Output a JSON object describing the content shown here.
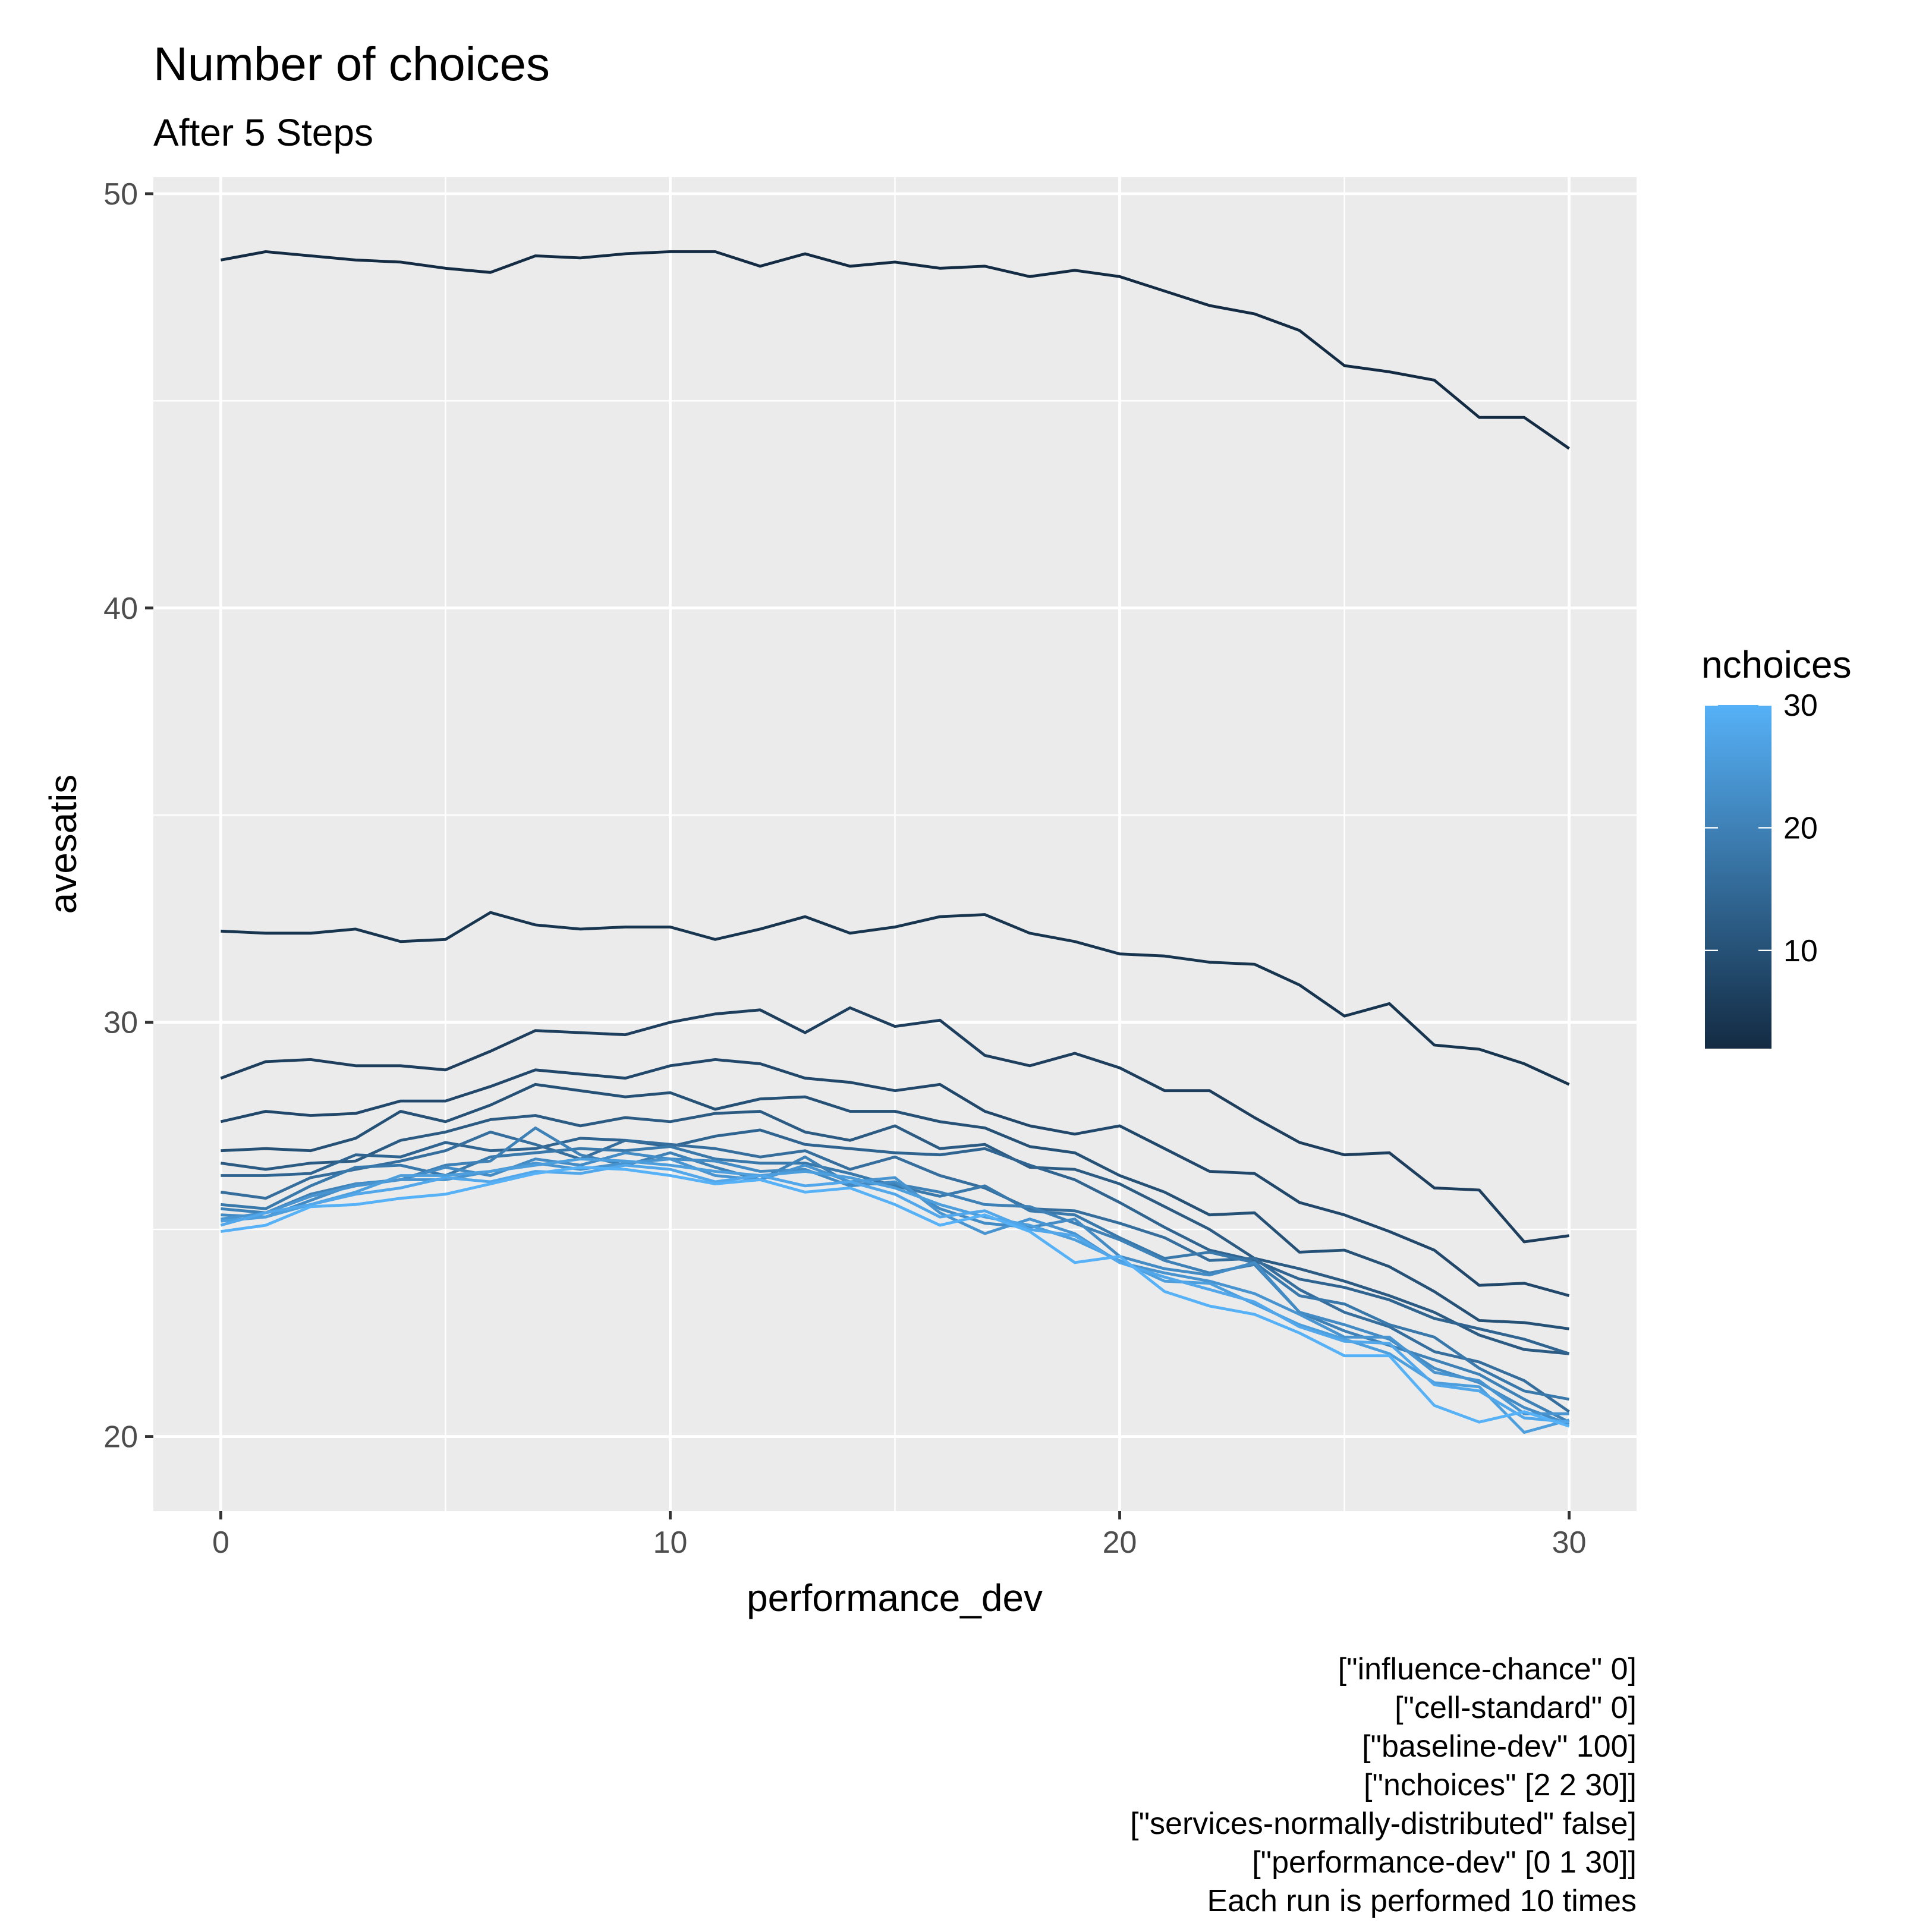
{
  "chart_data": {
    "type": "line",
    "title": "Number of choices",
    "subtitle": "After 5 Steps",
    "xlabel": "performance_dev",
    "ylabel": "avesatis",
    "xlim": [
      -1.5,
      31.5
    ],
    "ylim": [
      18.2,
      50.4
    ],
    "x_ticks": [
      0,
      10,
      20,
      30
    ],
    "y_ticks": [
      20,
      30,
      40,
      50
    ],
    "grid": true,
    "x": [
      0,
      1,
      2,
      3,
      4,
      5,
      6,
      7,
      8,
      9,
      10,
      11,
      12,
      13,
      14,
      15,
      16,
      17,
      18,
      19,
      20,
      21,
      22,
      23,
      24,
      25,
      26,
      27,
      28,
      29,
      30
    ],
    "color_legend": {
      "title": "nchoices",
      "type": "gradient",
      "min": 2,
      "max": 30,
      "low_color": "#132B43",
      "high_color": "#56B1F7",
      "ticks": [
        10,
        20,
        30
      ],
      "placement": "right"
    },
    "series": [
      {
        "nchoices": 2,
        "values": [
          48.4,
          48.6,
          48.5,
          48.4,
          48.35,
          48.2,
          48.1,
          48.5,
          48.45,
          48.55,
          48.6,
          48.6,
          48.25,
          48.55,
          48.25,
          48.35,
          48.2,
          48.25,
          48.0,
          48.15,
          48.0,
          47.65,
          47.3,
          47.1,
          46.7,
          45.85,
          45.7,
          45.5,
          44.6,
          44.6,
          43.85
        ]
      },
      {
        "nchoices": 4,
        "values": [
          32.2,
          32.15,
          32.15,
          32.25,
          31.95,
          32.0,
          32.65,
          32.35,
          32.25,
          32.3,
          32.3,
          32.0,
          32.25,
          32.55,
          32.15,
          32.3,
          32.55,
          32.6,
          32.15,
          31.95,
          31.65,
          31.6,
          31.45,
          31.4,
          30.9,
          30.15,
          30.45,
          29.45,
          29.35,
          29.0,
          28.5
        ]
      },
      {
        "nchoices": 6,
        "values": [
          28.65,
          29.05,
          29.1,
          28.95,
          28.95,
          28.85,
          29.3,
          29.8,
          29.75,
          29.7,
          30.0,
          30.2,
          30.3,
          29.75,
          30.35,
          29.9,
          30.05,
          29.2,
          28.95,
          29.25,
          28.9,
          28.35,
          28.35,
          27.7,
          27.1,
          26.8,
          26.85,
          26.0,
          25.95,
          24.7,
          24.85
        ]
      },
      {
        "nchoices": 8,
        "values": [
          27.6,
          27.85,
          27.75,
          27.8,
          28.1,
          28.1,
          28.45,
          28.85,
          28.75,
          28.65,
          28.95,
          29.1,
          29.0,
          28.65,
          28.55,
          28.35,
          28.5,
          27.85,
          27.5,
          27.3,
          27.5,
          26.95,
          26.4,
          26.35,
          25.65,
          25.35,
          24.95,
          24.5,
          23.65,
          23.7,
          23.4
        ]
      },
      {
        "nchoices": 10,
        "values": [
          26.9,
          26.95,
          26.9,
          27.2,
          27.85,
          27.6,
          28.0,
          28.5,
          28.35,
          28.2,
          28.3,
          27.9,
          28.15,
          28.2,
          27.85,
          27.85,
          27.6,
          27.45,
          27.0,
          26.85,
          26.3,
          25.9,
          25.35,
          25.4,
          24.45,
          24.5,
          24.1,
          23.5,
          22.8,
          22.75,
          22.6
        ]
      },
      {
        "nchoices": 12,
        "values": [
          26.6,
          26.45,
          26.6,
          26.65,
          27.15,
          27.35,
          27.65,
          27.75,
          27.5,
          27.7,
          27.6,
          27.8,
          27.85,
          27.35,
          27.15,
          27.5,
          26.95,
          27.05,
          26.5,
          26.45,
          26.1,
          25.55,
          25.0,
          24.3,
          24.05,
          23.75,
          23.4,
          23.0,
          22.45,
          22.1,
          22.0
        ]
      },
      {
        "nchoices": 14,
        "values": [
          26.3,
          26.3,
          26.35,
          26.8,
          26.75,
          27.1,
          26.9,
          26.95,
          27.2,
          27.15,
          27.0,
          27.25,
          27.4,
          27.05,
          26.95,
          26.85,
          26.8,
          26.95,
          26.55,
          26.2,
          25.65,
          25.05,
          24.5,
          24.25,
          23.8,
          23.6,
          23.3,
          22.85,
          22.6,
          22.35,
          22.0
        ]
      },
      {
        "nchoices": 16,
        "values": [
          25.9,
          25.75,
          26.25,
          26.45,
          26.65,
          26.9,
          27.35,
          27.05,
          26.7,
          27.15,
          27.05,
          26.95,
          26.75,
          26.9,
          26.45,
          26.75,
          26.3,
          26.0,
          25.5,
          25.45,
          25.15,
          24.8,
          24.25,
          24.3,
          23.55,
          23.0,
          22.65,
          22.05,
          21.8,
          21.35,
          20.6
        ]
      },
      {
        "nchoices": 18,
        "values": [
          25.6,
          25.5,
          26.05,
          26.5,
          26.55,
          26.3,
          26.75,
          26.85,
          26.95,
          26.9,
          27.0,
          26.7,
          26.6,
          26.6,
          26.35,
          26.05,
          25.8,
          26.05,
          25.45,
          25.35,
          24.8,
          24.3,
          24.45,
          24.2,
          23.4,
          23.2,
          22.7,
          22.4,
          21.65,
          21.1,
          20.9
        ]
      },
      {
        "nchoices": 20,
        "values": [
          25.5,
          25.4,
          25.85,
          26.1,
          26.2,
          26.55,
          26.65,
          27.45,
          26.8,
          26.55,
          26.85,
          26.5,
          26.2,
          26.75,
          26.1,
          26.1,
          25.9,
          25.6,
          25.55,
          25.15,
          24.75,
          24.25,
          23.95,
          24.15,
          23.0,
          22.55,
          22.2,
          21.85,
          21.5,
          20.9,
          20.35
        ]
      },
      {
        "nchoices": 22,
        "values": [
          25.35,
          25.3,
          25.7,
          26.1,
          26.2,
          26.5,
          26.3,
          26.7,
          26.55,
          26.85,
          26.7,
          26.65,
          26.4,
          26.45,
          26.05,
          26.15,
          25.5,
          25.15,
          25.05,
          25.25,
          24.35,
          24.05,
          23.9,
          24.2,
          23.0,
          22.7,
          22.35,
          21.65,
          21.3,
          20.7,
          20.3
        ]
      },
      {
        "nchoices": 24,
        "values": [
          25.25,
          25.4,
          25.8,
          26.05,
          26.2,
          26.2,
          26.4,
          26.6,
          26.45,
          26.6,
          26.7,
          26.3,
          26.2,
          26.55,
          26.15,
          26.25,
          25.4,
          24.9,
          25.25,
          24.9,
          24.2,
          23.95,
          23.75,
          23.45,
          22.95,
          22.4,
          22.4,
          21.55,
          21.35,
          20.55,
          20.55
        ]
      },
      {
        "nchoices": 26,
        "values": [
          25.2,
          25.3,
          25.6,
          25.9,
          26.3,
          26.3,
          26.4,
          26.55,
          26.7,
          26.65,
          26.55,
          26.4,
          26.3,
          26.4,
          26.25,
          26.0,
          25.6,
          25.3,
          25.1,
          24.75,
          24.25,
          23.75,
          23.7,
          23.2,
          22.7,
          22.35,
          22.0,
          21.3,
          21.2,
          20.1,
          20.4
        ]
      },
      {
        "nchoices": 28,
        "values": [
          25.1,
          25.4,
          25.6,
          25.85,
          26.0,
          26.25,
          26.15,
          26.4,
          26.35,
          26.55,
          26.45,
          26.15,
          26.3,
          26.05,
          26.15,
          25.85,
          25.3,
          25.45,
          25.0,
          24.85,
          24.2,
          23.85,
          23.55,
          23.25,
          22.65,
          22.3,
          22.25,
          21.25,
          21.1,
          20.45,
          20.35
        ]
      },
      {
        "nchoices": 30,
        "values": [
          24.95,
          25.1,
          25.55,
          25.6,
          25.75,
          25.85,
          26.1,
          26.35,
          26.5,
          26.45,
          26.3,
          26.1,
          26.2,
          25.9,
          26.0,
          25.6,
          25.1,
          25.35,
          24.95,
          24.2,
          24.35,
          23.5,
          23.15,
          22.95,
          22.5,
          21.95,
          21.95,
          20.75,
          20.35,
          20.6,
          20.25
        ]
      }
    ],
    "caption": [
      "[\"influence-chance\" 0]",
      "[\"cell-standard\" 0]",
      "[\"baseline-dev\" 100]",
      "[\"nchoices\" [2 2 30]]",
      "[\"services-normally-distributed\" false]",
      "[\"performance-dev\" [0 1 30]]",
      "Each run is performed 10 times"
    ]
  }
}
